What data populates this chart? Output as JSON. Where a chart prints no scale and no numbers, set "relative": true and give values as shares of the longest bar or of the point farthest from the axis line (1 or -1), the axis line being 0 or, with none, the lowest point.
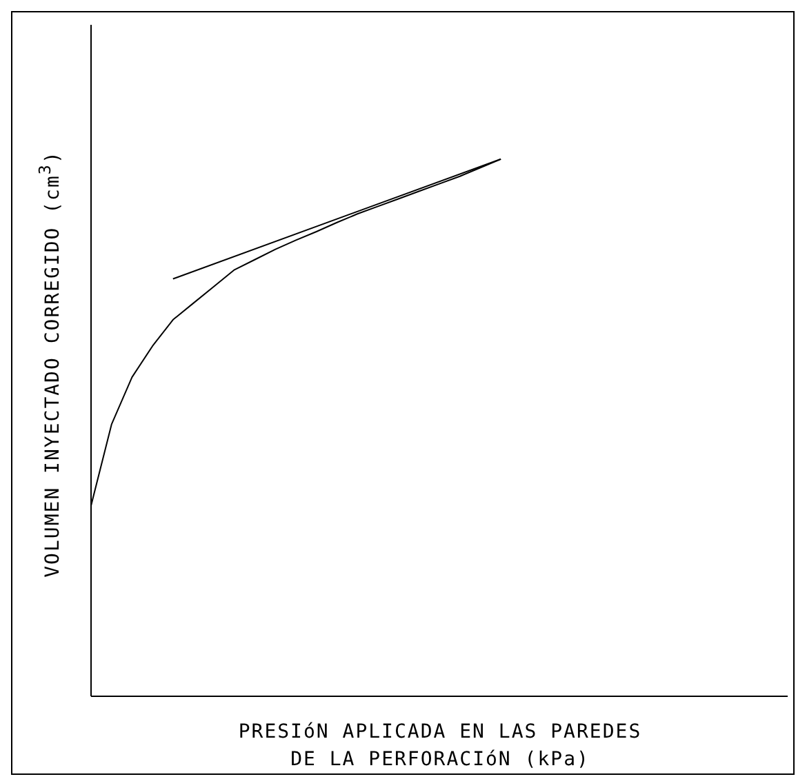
{
  "chart_data": {
    "type": "line",
    "relative": true,
    "xlabel": "PRESIóN APLICADA EN LAS PAREDES\nDE LA PERFORACIóN (kPa)",
    "ylabel": "VOLUMEN INYECTADO CORREGIDO (cm$^{3}$)",
    "marker": "none",
    "grid": false,
    "legend": false,
    "categories": [
      null,
      null,
      null,
      null,
      null,
      null,
      null,
      null,
      null,
      null,
      null,
      null,
      null,
      null,
      null,
      null,
      null,
      null,
      null,
      null,
      null,
      null,
      null,
      null,
      null,
      null,
      null,
      null,
      null,
      null,
      null,
      null,
      null,
      null,
      null
    ],
    "series": [
      {
        "color": "#000000",
        "values": [
          0.355,
          0.506,
          0.594,
          0.652,
          0.701,
          0.732,
          0.763,
          0.794,
          0.813,
          0.832,
          0.849,
          0.865,
          0.882,
          0.898,
          0.912,
          0.926,
          0.94,
          0.954,
          0.968,
          0.984,
          1,
          null,
          null,
          null,
          null,
          null,
          null,
          null,
          null,
          null,
          null,
          null,
          null,
          null,
          null
        ]
      },
      {
        "color": "#000000",
        "values": [
          null,
          null,
          null,
          null,
          0.777,
          null,
          null,
          null,
          null,
          null,
          null,
          null,
          null,
          null,
          null,
          null,
          null,
          null,
          null,
          null,
          1,
          null,
          null,
          null,
          null,
          null,
          null,
          null,
          null,
          null,
          null,
          null,
          null,
          null,
          null
        ]
      }
    ]
  }
}
